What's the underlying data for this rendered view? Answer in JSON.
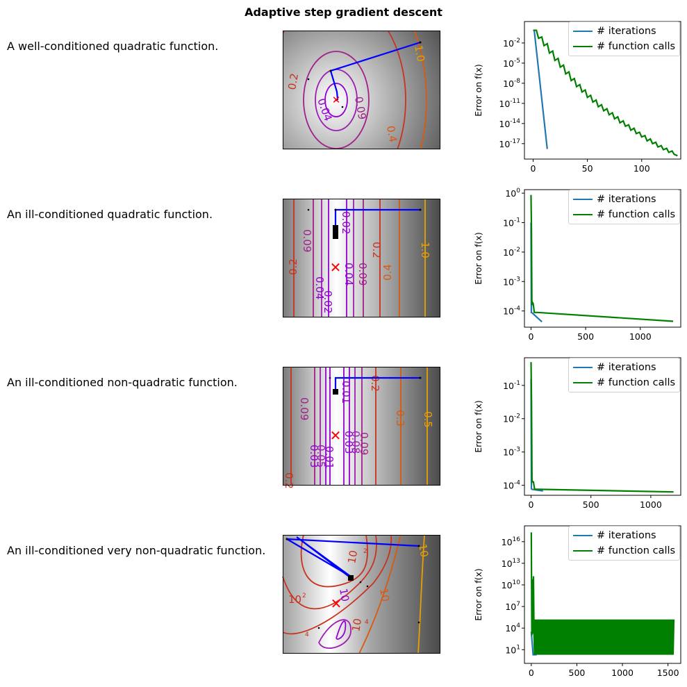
{
  "figure": {
    "title": "Adaptive step gradient descent"
  },
  "legend_labels": [
    "# iterations",
    "# function calls"
  ],
  "colors": {
    "iterations": "#1f77b4",
    "function_calls": "#008000",
    "path": "#0000ff",
    "minimum": "#ff0000"
  },
  "chart_data": [
    {
      "type": "line",
      "row_label": "A well-conditioned quadratic function.",
      "ylabel": "Error on f(x)",
      "yscale": "log",
      "xlim": [
        -8,
        136
      ],
      "ylim_exp": [
        -19.3,
        1.2
      ],
      "xticks": [
        "0",
        "50",
        "100"
      ],
      "yticks": [
        {
          "base": "10",
          "exp": "-2"
        },
        {
          "base": "10",
          "exp": "-5"
        },
        {
          "base": "10",
          "exp": "-8"
        },
        {
          "base": "10",
          "exp": "-11"
        },
        {
          "base": "10",
          "exp": "-14"
        },
        {
          "base": "10",
          "exp": "-17"
        }
      ],
      "legend": "top-right",
      "series": [
        {
          "name": "# iterations",
          "x": [
            0,
            1,
            13
          ],
          "y_exp": [
            -0.1,
            -0.1,
            -17.8
          ]
        },
        {
          "name": "# function calls",
          "x": [
            0,
            3,
            5,
            8,
            10,
            13,
            15,
            18,
            20,
            23,
            25,
            28,
            30,
            33,
            35,
            38,
            40,
            43,
            45,
            48,
            50,
            53,
            55,
            58,
            60,
            63,
            65,
            68,
            70,
            73,
            75,
            78,
            80,
            83,
            85,
            88,
            90,
            93,
            95,
            98,
            100,
            103,
            105,
            108,
            110,
            113,
            115,
            118,
            120,
            123,
            125,
            128,
            130,
            133
          ],
          "y_exp": [
            -0.1,
            -0.1,
            -1.3,
            -1.1,
            -2.4,
            -2.1,
            -3.5,
            -3.2,
            -4.6,
            -4.3,
            -5.6,
            -5.3,
            -6.6,
            -6.3,
            -7.6,
            -7.3,
            -8.5,
            -8.2,
            -9.3,
            -9.0,
            -10.1,
            -9.8,
            -10.8,
            -10.5,
            -11.5,
            -11.2,
            -12.1,
            -11.8,
            -12.7,
            -12.4,
            -13.3,
            -13.0,
            -13.9,
            -13.6,
            -14.4,
            -14.2,
            -15.0,
            -14.7,
            -15.5,
            -15.3,
            -16.0,
            -15.8,
            -16.6,
            -16.3,
            -17.0,
            -16.8,
            -17.5,
            -17.3,
            -17.9,
            -17.7,
            -18.3,
            -18.1,
            -18.6,
            -18.8
          ]
        }
      ]
    },
    {
      "type": "line",
      "row_label": "An ill-conditioned quadratic function.",
      "ylabel": "Error on f(x)",
      "yscale": "log",
      "xlim": [
        -60,
        1370
      ],
      "ylim_exp": [
        -4.55,
        0.12
      ],
      "xticks": [
        "0",
        "500",
        "1000"
      ],
      "yticks": [
        {
          "base": "10",
          "exp": "0"
        },
        {
          "base": "10",
          "exp": "-1"
        },
        {
          "base": "10",
          "exp": "-2"
        },
        {
          "base": "10",
          "exp": "-3"
        },
        {
          "base": "10",
          "exp": "-4"
        }
      ],
      "legend": "top-right",
      "series": [
        {
          "name": "# iterations",
          "x": [
            0,
            3,
            6,
            100
          ],
          "y_exp": [
            -1.0,
            -4.05,
            -4.05,
            -4.37
          ]
        },
        {
          "name": "# function calls",
          "x": [
            0,
            4,
            8,
            12,
            20,
            30,
            60,
            1300
          ],
          "y_exp": [
            -0.06,
            -1.2,
            -3.8,
            -3.7,
            -3.75,
            -4.05,
            -4.05,
            -4.35
          ]
        }
      ]
    },
    {
      "type": "line",
      "row_label": "An ill-conditioned non-quadratic function.",
      "ylabel": "Error on f(x)",
      "yscale": "log",
      "xlim": [
        -55,
        1250
      ],
      "ylim_exp": [
        -4.3,
        -0.17
      ],
      "xticks": [
        "0",
        "500",
        "1000"
      ],
      "yticks": [
        {
          "base": "10",
          "exp": "-1"
        },
        {
          "base": "10",
          "exp": "-2"
        },
        {
          "base": "10",
          "exp": "-3"
        },
        {
          "base": "10",
          "exp": "-4"
        }
      ],
      "legend": "top-right",
      "series": [
        {
          "name": "# iterations",
          "x": [
            0,
            3,
            6,
            100
          ],
          "y_exp": [
            -0.8,
            -4.1,
            -4.12,
            -4.17
          ]
        },
        {
          "name": "# function calls",
          "x": [
            0,
            4,
            8,
            12,
            20,
            30,
            60,
            1190
          ],
          "y_exp": [
            -0.3,
            -1.5,
            -3.9,
            -3.88,
            -3.9,
            -4.12,
            -4.12,
            -4.2
          ]
        }
      ]
    },
    {
      "type": "line",
      "row_label": "An ill-conditioned very non-quadratic function.",
      "ylabel": "Error on f(x)",
      "yscale": "log",
      "xlim": [
        -75,
        1640
      ],
      "ylim_exp": [
        -0.9,
        18.2
      ],
      "xticks": [
        "0",
        "500",
        "1000",
        "1500"
      ],
      "yticks": [
        {
          "base": "10",
          "exp": "16"
        },
        {
          "base": "10",
          "exp": "13"
        },
        {
          "base": "10",
          "exp": "10"
        },
        {
          "base": "10",
          "exp": "7"
        },
        {
          "base": "10",
          "exp": "4"
        },
        {
          "base": "10",
          "exp": "1"
        }
      ],
      "legend": "top-right",
      "series": [
        {
          "name": "# iterations",
          "x": [
            0,
            20,
            60
          ],
          "y_exp": [
            3.5,
            0.3,
            0.3
          ]
        },
        {
          "name": "# function calls",
          "x": [
            0,
            6,
            12,
            18,
            24,
            30,
            36,
            1570
          ],
          "y_exp": [
            17.3,
            3.0,
            10.8,
            3.2,
            11.2,
            3.0,
            0.3,
            5.2
          ]
        }
      ]
    }
  ],
  "contour_panels": [
    {
      "labels": [
        "1.0",
        "0.2",
        "0.04",
        "0.09",
        "0.4"
      ]
    },
    {
      "labels": [
        "0.02",
        "1.0",
        "0.09",
        "0.2",
        "0.04",
        "0.09",
        "0.2",
        "0.04",
        "0.4",
        "0.02"
      ]
    },
    {
      "labels": [
        "0.01",
        "0.2",
        "0.09",
        "0.5",
        "0.3",
        "0.09",
        "0.03",
        "0.08",
        "0.03",
        "0.05",
        "0.01",
        "0.2"
      ]
    },
    {
      "labels": [
        "10",
        "10",
        "10",
        "10",
        "10",
        "10"
      ]
    }
  ]
}
